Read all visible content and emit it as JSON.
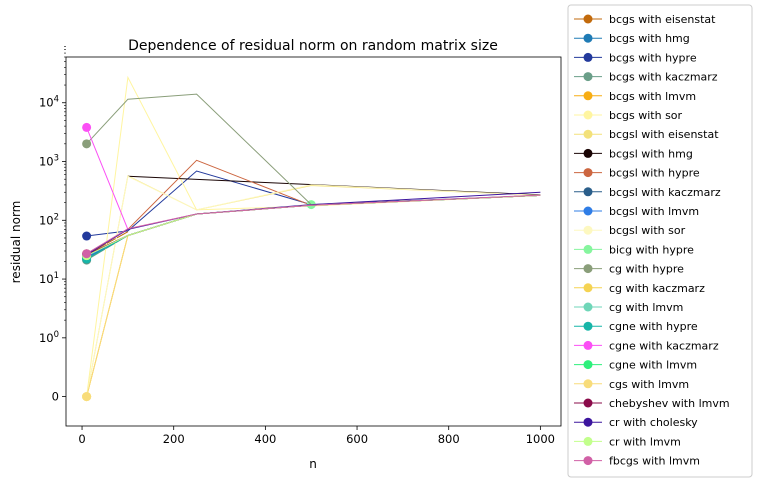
{
  "chart_data": {
    "type": "line",
    "title": "Dependence of residual norm on random matrix size",
    "xlabel": "n",
    "ylabel": "residual norm",
    "xlim": [
      -35,
      1045
    ],
    "xticks": [
      0,
      200,
      400,
      600,
      800,
      1000
    ],
    "yscale": "symlog",
    "ylim": [
      -0.5,
      60000
    ],
    "yticks": [
      {
        "value": 0,
        "label": "0"
      },
      {
        "value": 1,
        "label": "10^0"
      },
      {
        "value": 10,
        "label": "10^1"
      },
      {
        "value": 100,
        "label": "10^2"
      },
      {
        "value": 1000,
        "label": "10^3"
      },
      {
        "value": 10000,
        "label": "10^4"
      }
    ],
    "grid": false,
    "legend_position": "outside-right",
    "x": [
      10,
      100,
      250,
      500,
      1000
    ],
    "series": [
      {
        "name": "bcgs with eisenstat",
        "color": "#c26a0c",
        "points": [
          [
            10,
            26
          ],
          [
            100,
            64
          ]
        ],
        "marker": true
      },
      {
        "name": "bcgs with hmg",
        "color": "#1f7bb5",
        "points": [
          [
            10,
            23
          ],
          [
            100,
            55
          ],
          [
            250,
            128
          ],
          [
            500,
            180
          ],
          [
            1000,
            265
          ]
        ],
        "marker": true
      },
      {
        "name": "bcgs with hypre",
        "color": "#233a9c",
        "points": [
          [
            10,
            54
          ],
          [
            100,
            66
          ],
          [
            250,
            690
          ],
          [
            500,
            185
          ],
          [
            1000,
            265
          ]
        ],
        "marker": true
      },
      {
        "name": "bcgs with kaczmarz",
        "color": "#6a9e88",
        "points": [
          [
            10,
            21
          ],
          [
            100,
            55
          ],
          [
            250,
            128
          ],
          [
            500,
            180
          ],
          [
            1000,
            265
          ]
        ],
        "marker": true
      },
      {
        "name": "bcgs with lmvm",
        "color": "#f7ad14",
        "points": [
          [
            10,
            0
          ],
          [
            100,
            55
          ],
          [
            250,
            128
          ],
          [
            500,
            180
          ],
          [
            1000,
            265
          ]
        ],
        "marker": true
      },
      {
        "name": "bcgs with sor",
        "color": "#fff5a0",
        "points": [
          [
            10,
            0
          ],
          [
            100,
            27000
          ],
          [
            250,
            150
          ],
          [
            500,
            175
          ],
          [
            1000,
            265
          ]
        ],
        "marker": true
      },
      {
        "name": "bcgsl with eisenstat",
        "color": "#f3e17a",
        "points": [
          [
            10,
            0
          ],
          [
            100,
            570
          ],
          [
            250,
            150
          ],
          [
            500,
            390
          ],
          [
            1000,
            265
          ]
        ],
        "marker": true
      },
      {
        "name": "bcgsl with hmg",
        "color": "#1a0505",
        "points": [
          [
            100,
            560
          ],
          [
            1000,
            270
          ]
        ],
        "marker": true
      },
      {
        "name": "bcgsl with hypre",
        "color": "#cc6640",
        "points": [
          [
            10,
            27
          ],
          [
            100,
            70
          ],
          [
            250,
            1050
          ],
          [
            500,
            180
          ],
          [
            1000,
            265
          ]
        ],
        "marker": true
      },
      {
        "name": "bcgsl with kaczmarz",
        "color": "#2a5e8a",
        "points": [
          [
            10,
            22
          ],
          [
            100,
            55
          ],
          [
            250,
            128
          ],
          [
            500,
            180
          ],
          [
            1000,
            265
          ]
        ],
        "marker": true
      },
      {
        "name": "bcgsl with lmvm",
        "color": "#2f7de6",
        "points": [
          [
            10,
            24
          ],
          [
            100,
            55
          ],
          [
            250,
            128
          ],
          [
            500,
            180
          ],
          [
            1000,
            265
          ]
        ],
        "marker": true
      },
      {
        "name": "bcgsl with sor",
        "color": "#fdf8c0",
        "points": [
          [
            10,
            0
          ],
          [
            100,
            560
          ],
          [
            250,
            150
          ],
          [
            500,
            400
          ],
          [
            1000,
            265
          ]
        ],
        "marker": true
      },
      {
        "name": "bicg with hypre",
        "color": "#86f59e",
        "points": [
          [
            500,
            185
          ]
        ],
        "marker": true
      },
      {
        "name": "cg with hypre",
        "color": "#8a9e7a",
        "points": [
          [
            10,
            2000
          ],
          [
            100,
            11500
          ],
          [
            250,
            14000
          ],
          [
            500,
            185
          ]
        ],
        "marker": true
      },
      {
        "name": "cg with kaczmarz",
        "color": "#f5d352",
        "points": [
          [
            10,
            26
          ],
          [
            100,
            55
          ],
          [
            250,
            128
          ],
          [
            500,
            180
          ],
          [
            1000,
            265
          ]
        ],
        "marker": true
      },
      {
        "name": "cg with lmvm",
        "color": "#6fd6b8",
        "points": [
          [
            10,
            25
          ],
          [
            100,
            55
          ],
          [
            250,
            128
          ],
          [
            500,
            180
          ],
          [
            1000,
            265
          ]
        ],
        "marker": true
      },
      {
        "name": "cgne with hypre",
        "color": "#17b5a8",
        "points": [
          [
            10,
            22
          ],
          [
            100,
            55
          ],
          [
            250,
            128
          ],
          [
            500,
            180
          ],
          [
            1000,
            265
          ]
        ],
        "marker": true
      },
      {
        "name": "cgne with kaczmarz",
        "color": "#fb4ff5",
        "points": [
          [
            10,
            3800
          ],
          [
            100,
            70
          ]
        ],
        "marker": true
      },
      {
        "name": "cgne with lmvm",
        "color": "#2ef07c",
        "points": [
          [
            10,
            25
          ],
          [
            100,
            55
          ],
          [
            250,
            128
          ],
          [
            500,
            180
          ],
          [
            1000,
            265
          ]
        ],
        "marker": true
      },
      {
        "name": "cgs with lmvm",
        "color": "#f8dc7a",
        "points": [
          [
            10,
            0
          ],
          [
            100,
            55
          ],
          [
            250,
            128
          ],
          [
            500,
            180
          ],
          [
            1000,
            265
          ]
        ],
        "marker": true
      },
      {
        "name": "chebyshev with lmvm",
        "color": "#8a0b4a",
        "points": [
          [
            10,
            26
          ],
          [
            100,
            55
          ],
          [
            250,
            128
          ],
          [
            500,
            180
          ],
          [
            1000,
            265
          ]
        ],
        "marker": true
      },
      {
        "name": "cr with cholesky",
        "color": "#3c159e",
        "points": [
          [
            10,
            26
          ],
          [
            100,
            70
          ],
          [
            250,
            128
          ],
          [
            500,
            185
          ],
          [
            1000,
            300
          ]
        ],
        "marker": true
      },
      {
        "name": "cr with lmvm",
        "color": "#c2ff8c",
        "points": [
          [
            10,
            25
          ],
          [
            100,
            55
          ],
          [
            250,
            128
          ],
          [
            500,
            180
          ],
          [
            1000,
            265
          ]
        ],
        "marker": true
      },
      {
        "name": "fbcgs with lmvm",
        "color": "#d160a6",
        "points": [
          [
            10,
            27
          ],
          [
            100,
            72
          ],
          [
            250,
            128
          ],
          [
            500,
            180
          ],
          [
            1000,
            268
          ]
        ],
        "marker": true
      }
    ]
  }
}
